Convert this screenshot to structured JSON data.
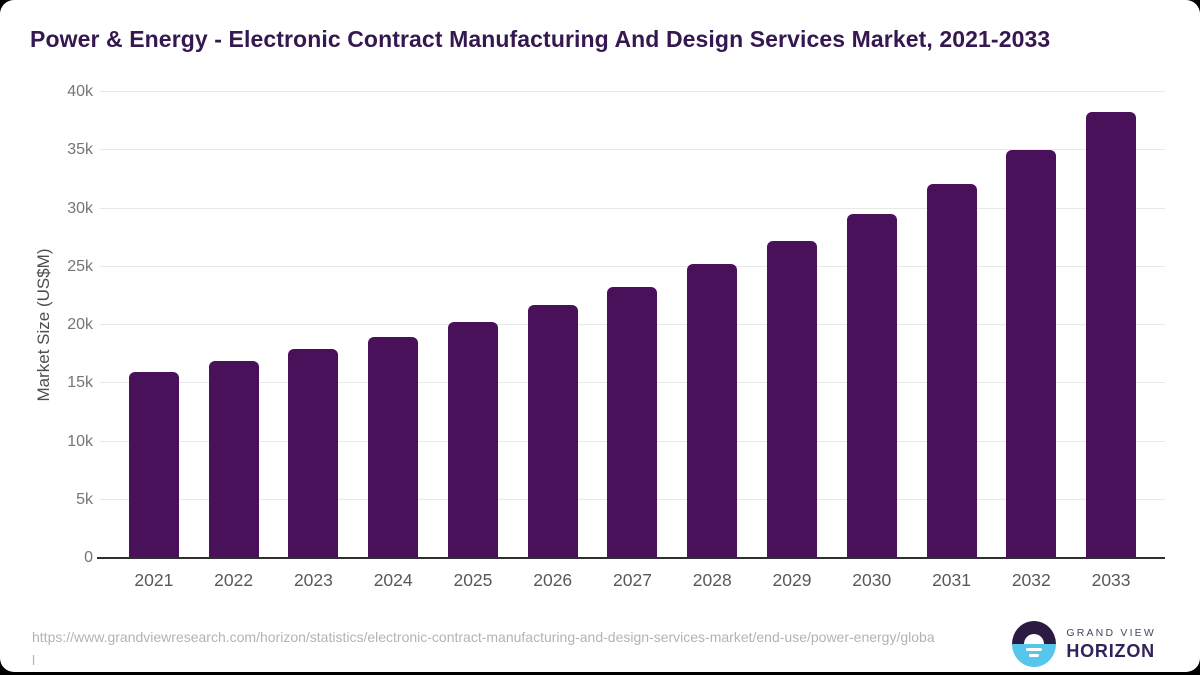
{
  "header": {
    "title": "Power & Energy - Electronic Contract Manufacturing And Design Services Market, 2021-2033"
  },
  "chart_data": {
    "type": "bar",
    "title": "Power & Energy - Electronic Contract Manufacturing And Design Services Market, 2021-2033",
    "categories": [
      "2021",
      "2022",
      "2023",
      "2024",
      "2025",
      "2026",
      "2027",
      "2028",
      "2029",
      "2030",
      "2031",
      "2032",
      "2033"
    ],
    "values": [
      16000,
      16900,
      17900,
      19000,
      20300,
      21750,
      23250,
      25200,
      27250,
      29500,
      32100,
      35000,
      38300
    ],
    "xlabel": "",
    "ylabel": "Market Size (US$M)",
    "ylim": [
      0,
      40000
    ],
    "yticks": [
      0,
      5000,
      10000,
      15000,
      20000,
      25000,
      30000,
      35000,
      40000
    ],
    "ytick_labels": [
      "0",
      "5k",
      "10k",
      "15k",
      "20k",
      "25k",
      "30k",
      "35k",
      "40k"
    ],
    "grid": true,
    "legend": false,
    "bar_color": "#48115a"
  },
  "footer": {
    "source_url": "https://www.grandviewresearch.com/horizon/statistics/electronic-contract-manufacturing-and-design-services-market/end-use/power-energy/global",
    "brand": {
      "top": "GRAND VIEW",
      "bottom": "HORIZON"
    }
  },
  "colors": {
    "bar": "#48115a",
    "title_text": "#35184f",
    "grid_line": "#e8e8e8",
    "axis_line": "#2f2f2f",
    "y_tick_label": "#757575",
    "x_tick_label": "#595959",
    "axis_title": "#4d4d4d",
    "url_text": "#b3b3b3",
    "logo_top": "#2b1b43",
    "logo_bottom": "#56c6ea",
    "brand_top_text": "#4b4560",
    "brand_bottom_text": "#33215c",
    "page_background": "#000000",
    "card_background": "#ffffff"
  }
}
